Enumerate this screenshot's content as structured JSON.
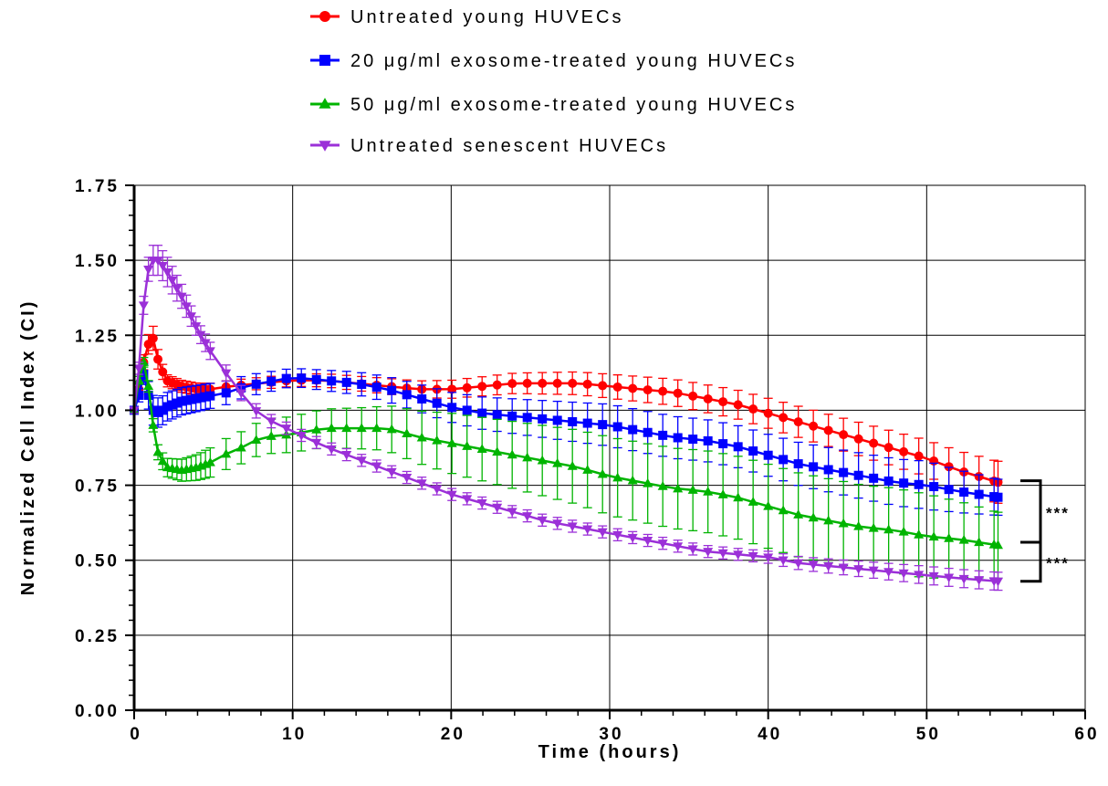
{
  "chart_data": {
    "type": "line",
    "xlabel": "Time (hours)",
    "ylabel": "Normalized Cell Index (CI)",
    "xlim": [
      0,
      60
    ],
    "ylim": [
      0,
      1.75
    ],
    "x_ticks": [
      "0",
      "10",
      "20",
      "30",
      "40",
      "50",
      "60"
    ],
    "y_ticks": [
      "0.00",
      "0.25",
      "0.50",
      "0.75",
      "1.00",
      "1.25",
      "1.50",
      "1.75"
    ],
    "grid": true,
    "legend_position": "top",
    "series": [
      {
        "name": "Untreated young HUVECs",
        "color": "#ff0000",
        "marker": "circle",
        "points": [
          [
            0,
            1.0
          ],
          [
            0.3,
            1.07
          ],
          [
            0.6,
            1.16
          ],
          [
            0.9,
            1.22
          ],
          [
            1.2,
            1.24
          ],
          [
            1.5,
            1.17
          ],
          [
            2,
            1.1
          ],
          [
            3,
            1.08
          ],
          [
            4,
            1.07
          ],
          [
            5,
            1.07
          ],
          [
            6,
            1.08
          ],
          [
            8,
            1.09
          ],
          [
            10,
            1.1
          ],
          [
            12,
            1.1
          ],
          [
            14,
            1.09
          ],
          [
            16,
            1.08
          ],
          [
            18,
            1.07
          ],
          [
            20,
            1.07
          ],
          [
            22,
            1.08
          ],
          [
            24,
            1.09
          ],
          [
            26,
            1.09
          ],
          [
            28,
            1.09
          ],
          [
            30,
            1.08
          ],
          [
            32,
            1.07
          ],
          [
            34,
            1.06
          ],
          [
            36,
            1.04
          ],
          [
            38,
            1.02
          ],
          [
            40,
            0.99
          ],
          [
            42,
            0.96
          ],
          [
            44,
            0.93
          ],
          [
            46,
            0.9
          ],
          [
            48,
            0.87
          ],
          [
            50,
            0.84
          ],
          [
            52,
            0.8
          ],
          [
            54.5,
            0.76
          ]
        ],
        "error": [
          [
            0,
            0.01
          ],
          [
            1.2,
            0.04
          ],
          [
            2,
            0.02
          ],
          [
            10,
            0.02
          ],
          [
            20,
            0.03
          ],
          [
            30,
            0.04
          ],
          [
            40,
            0.05
          ],
          [
            50,
            0.06
          ],
          [
            54.5,
            0.07
          ]
        ]
      },
      {
        "name": "20 μg/ml exosome-treated young HUVECs",
        "color": "#0000ff",
        "marker": "square",
        "points": [
          [
            0,
            1.0
          ],
          [
            0.3,
            1.05
          ],
          [
            0.6,
            1.12
          ],
          [
            0.9,
            1.05
          ],
          [
            1.2,
            1.0
          ],
          [
            1.6,
            0.99
          ],
          [
            2,
            1.01
          ],
          [
            3,
            1.03
          ],
          [
            4,
            1.04
          ],
          [
            5,
            1.05
          ],
          [
            6,
            1.06
          ],
          [
            7,
            1.08
          ],
          [
            8,
            1.09
          ],
          [
            10,
            1.11
          ],
          [
            12,
            1.1
          ],
          [
            14,
            1.09
          ],
          [
            16,
            1.07
          ],
          [
            18,
            1.04
          ],
          [
            20,
            1.01
          ],
          [
            22,
            0.99
          ],
          [
            24,
            0.98
          ],
          [
            26,
            0.97
          ],
          [
            28,
            0.96
          ],
          [
            30,
            0.95
          ],
          [
            32,
            0.93
          ],
          [
            34,
            0.91
          ],
          [
            36,
            0.9
          ],
          [
            38,
            0.88
          ],
          [
            40,
            0.85
          ],
          [
            42,
            0.82
          ],
          [
            44,
            0.8
          ],
          [
            46,
            0.78
          ],
          [
            48,
            0.76
          ],
          [
            50,
            0.75
          ],
          [
            52,
            0.73
          ],
          [
            54.5,
            0.71
          ]
        ],
        "error": [
          [
            0,
            0.01
          ],
          [
            1,
            0.05
          ],
          [
            10,
            0.03
          ],
          [
            20,
            0.05
          ],
          [
            30,
            0.07
          ],
          [
            40,
            0.07
          ],
          [
            50,
            0.08
          ],
          [
            54.5,
            0.06
          ]
        ]
      },
      {
        "name": "50 μg/ml exosome-treated young HUVECs",
        "color": "#00b400",
        "marker": "triangle-up",
        "points": [
          [
            0,
            1.0
          ],
          [
            0.3,
            1.1
          ],
          [
            0.6,
            1.16
          ],
          [
            0.9,
            1.08
          ],
          [
            1.2,
            0.95
          ],
          [
            1.5,
            0.86
          ],
          [
            2,
            0.81
          ],
          [
            3,
            0.8
          ],
          [
            4,
            0.81
          ],
          [
            5,
            0.83
          ],
          [
            6,
            0.86
          ],
          [
            7,
            0.88
          ],
          [
            8,
            0.91
          ],
          [
            10,
            0.92
          ],
          [
            12,
            0.94
          ],
          [
            14,
            0.94
          ],
          [
            16,
            0.94
          ],
          [
            18,
            0.91
          ],
          [
            20,
            0.89
          ],
          [
            22,
            0.87
          ],
          [
            24,
            0.85
          ],
          [
            26,
            0.83
          ],
          [
            28,
            0.81
          ],
          [
            30,
            0.78
          ],
          [
            32,
            0.76
          ],
          [
            34,
            0.74
          ],
          [
            36,
            0.73
          ],
          [
            38,
            0.71
          ],
          [
            40,
            0.68
          ],
          [
            42,
            0.65
          ],
          [
            44,
            0.63
          ],
          [
            46,
            0.61
          ],
          [
            48,
            0.6
          ],
          [
            50,
            0.58
          ],
          [
            52,
            0.57
          ],
          [
            54.5,
            0.55
          ]
        ],
        "error": [
          [
            0,
            0.01
          ],
          [
            2,
            0.03
          ],
          [
            5,
            0.05
          ],
          [
            10,
            0.06
          ],
          [
            15,
            0.07
          ],
          [
            20,
            0.1
          ],
          [
            30,
            0.13
          ],
          [
            40,
            0.14
          ],
          [
            50,
            0.14
          ],
          [
            54.5,
            0.11
          ]
        ]
      },
      {
        "name": "Untreated senescent HUVECs",
        "color": "#9b30d8",
        "marker": "triangle-down",
        "points": [
          [
            0,
            1.0
          ],
          [
            0.3,
            1.14
          ],
          [
            0.6,
            1.35
          ],
          [
            0.9,
            1.47
          ],
          [
            1.2,
            1.5
          ],
          [
            1.5,
            1.5
          ],
          [
            2,
            1.47
          ],
          [
            3,
            1.38
          ],
          [
            4,
            1.27
          ],
          [
            5,
            1.18
          ],
          [
            6,
            1.11
          ],
          [
            7,
            1.04
          ],
          [
            8,
            0.98
          ],
          [
            10,
            0.93
          ],
          [
            12,
            0.88
          ],
          [
            14,
            0.84
          ],
          [
            16,
            0.8
          ],
          [
            18,
            0.76
          ],
          [
            20,
            0.72
          ],
          [
            22,
            0.69
          ],
          [
            24,
            0.66
          ],
          [
            26,
            0.63
          ],
          [
            28,
            0.61
          ],
          [
            30,
            0.59
          ],
          [
            32,
            0.57
          ],
          [
            34,
            0.55
          ],
          [
            36,
            0.53
          ],
          [
            38,
            0.52
          ],
          [
            40,
            0.51
          ],
          [
            42,
            0.49
          ],
          [
            44,
            0.48
          ],
          [
            46,
            0.47
          ],
          [
            48,
            0.46
          ],
          [
            50,
            0.45
          ],
          [
            52,
            0.44
          ],
          [
            54.5,
            0.43
          ]
        ],
        "error": [
          [
            0,
            0.01
          ],
          [
            1.2,
            0.05
          ],
          [
            2,
            0.05
          ],
          [
            4,
            0.03
          ],
          [
            10,
            0.02
          ],
          [
            20,
            0.02
          ],
          [
            30,
            0.02
          ],
          [
            40,
            0.02
          ],
          [
            50,
            0.03
          ],
          [
            54.5,
            0.03
          ]
        ]
      }
    ],
    "significance": [
      {
        "label": "***",
        "from": 0.765,
        "to": 0.56
      },
      {
        "label": "***",
        "from": 0.56,
        "to": 0.43
      }
    ]
  }
}
